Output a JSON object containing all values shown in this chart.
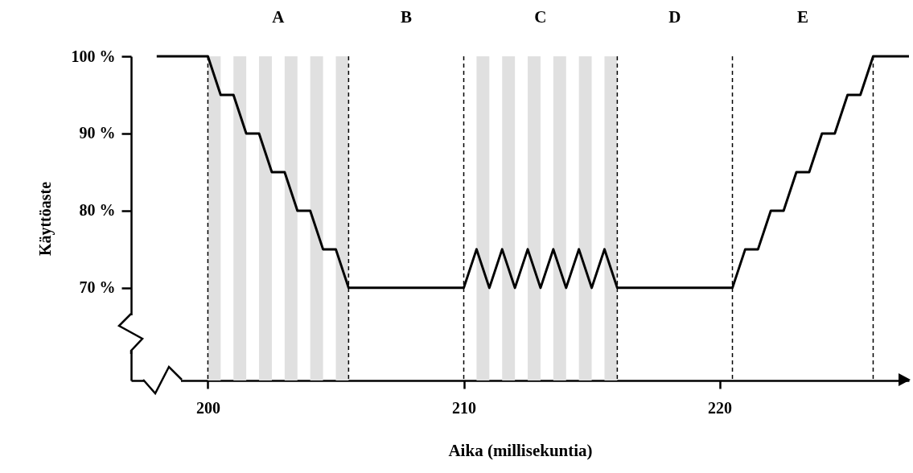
{
  "chart_data": {
    "type": "line",
    "xlabel": "Aika (millisekuntia)",
    "ylabel": "Käyttöaste",
    "xlim": [
      197,
      227.4
    ],
    "ylim": [
      58,
      100
    ],
    "xticks": [
      200,
      210,
      220
    ],
    "yticks": [
      {
        "value": 70,
        "label": "70 %"
      },
      {
        "value": 80,
        "label": "80 %"
      },
      {
        "value": 90,
        "label": "90 %"
      },
      {
        "value": 100,
        "label": "100 %"
      }
    ],
    "series": [
      {
        "color": "#000000",
        "x": [
          198,
          200,
          200.5,
          201,
          201.5,
          202,
          202.5,
          203,
          203.5,
          204,
          204.5,
          205,
          205.5,
          210,
          210.5,
          211,
          211.5,
          212,
          212.5,
          213,
          213.5,
          214,
          214.5,
          215,
          215.5,
          216,
          220.5,
          221,
          221.5,
          222,
          222.5,
          223,
          223.5,
          224,
          224.5,
          225,
          225.5,
          226,
          227.4
        ],
        "values": [
          100,
          100,
          95,
          95,
          90,
          90,
          85,
          85,
          80,
          80,
          75,
          75,
          70,
          70,
          75,
          70,
          75,
          70,
          75,
          70,
          75,
          70,
          75,
          70,
          75,
          70,
          70,
          75,
          75,
          80,
          80,
          85,
          85,
          90,
          90,
          95,
          95,
          100,
          100
        ]
      }
    ],
    "bands": [
      {
        "axis": "x",
        "from": 200,
        "to": 200.5,
        "color": "#e0e0e0"
      },
      {
        "axis": "x",
        "from": 201,
        "to": 201.5,
        "color": "#e0e0e0"
      },
      {
        "axis": "x",
        "from": 202,
        "to": 202.5,
        "color": "#e0e0e0"
      },
      {
        "axis": "x",
        "from": 203,
        "to": 203.5,
        "color": "#e0e0e0"
      },
      {
        "axis": "x",
        "from": 204,
        "to": 204.5,
        "color": "#e0e0e0"
      },
      {
        "axis": "x",
        "from": 205,
        "to": 205.5,
        "color": "#e0e0e0"
      },
      {
        "axis": "x",
        "from": 210.5,
        "to": 211,
        "color": "#e0e0e0"
      },
      {
        "axis": "x",
        "from": 211.5,
        "to": 212,
        "color": "#e0e0e0"
      },
      {
        "axis": "x",
        "from": 212.5,
        "to": 213,
        "color": "#e0e0e0"
      },
      {
        "axis": "x",
        "from": 213.5,
        "to": 214,
        "color": "#e0e0e0"
      },
      {
        "axis": "x",
        "from": 214.5,
        "to": 215,
        "color": "#e0e0e0"
      },
      {
        "axis": "x",
        "from": 215.5,
        "to": 216,
        "color": "#e0e0e0"
      }
    ],
    "annotations": [
      "A",
      "B",
      "C",
      "D",
      "E"
    ],
    "ref_lines": [
      {
        "axis": "x",
        "value": 200,
        "color": "#000000",
        "line_style": "dashed"
      },
      {
        "axis": "x",
        "value": 205.5,
        "color": "#000000",
        "line_style": "dashed"
      },
      {
        "axis": "x",
        "value": 210,
        "color": "#000000",
        "line_style": "dashed"
      },
      {
        "axis": "x",
        "value": 216,
        "color": "#000000",
        "line_style": "dashed"
      },
      {
        "axis": "x",
        "value": 220.5,
        "color": "#000000",
        "line_style": "dashed"
      },
      {
        "axis": "x",
        "value": 226,
        "color": "#000000",
        "line_style": "dashed"
      }
    ]
  }
}
